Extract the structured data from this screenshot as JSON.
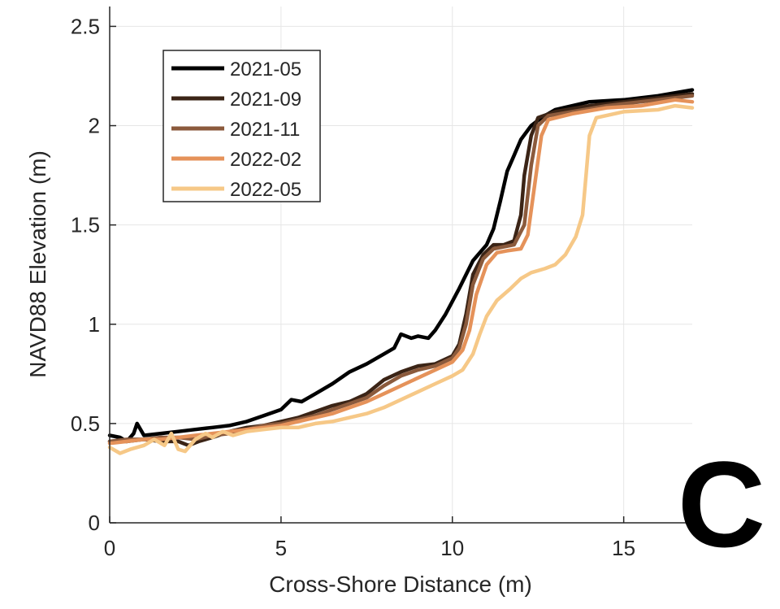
{
  "chart_data": {
    "type": "line",
    "title": "",
    "xlabel": "Cross-Shore Distance (m)",
    "ylabel": "NAVD88 Elevation (m)",
    "xlim": [
      0,
      17
    ],
    "ylim": [
      0,
      2.6
    ],
    "xticks": [
      0,
      5,
      10,
      15
    ],
    "xtick_labels": [
      "0",
      "5",
      "10",
      "15"
    ],
    "yticks": [
      0,
      0.5,
      1,
      1.5,
      2,
      2.5
    ],
    "ytick_labels": [
      "0",
      "0.5",
      "1",
      "1.5",
      "2",
      "2.5"
    ],
    "grid": true,
    "legend_position": "top-left",
    "panel_label": "C",
    "series": [
      {
        "name": "2021-05",
        "color": "#000000",
        "points": [
          [
            0,
            0.44
          ],
          [
            0.3,
            0.43
          ],
          [
            0.5,
            0.41
          ],
          [
            0.7,
            0.45
          ],
          [
            0.8,
            0.5
          ],
          [
            1.0,
            0.44
          ],
          [
            1.5,
            0.45
          ],
          [
            2,
            0.46
          ],
          [
            2.5,
            0.47
          ],
          [
            3,
            0.48
          ],
          [
            3.5,
            0.49
          ],
          [
            4,
            0.51
          ],
          [
            4.5,
            0.54
          ],
          [
            5,
            0.57
          ],
          [
            5.3,
            0.62
          ],
          [
            5.6,
            0.61
          ],
          [
            6,
            0.65
          ],
          [
            6.5,
            0.7
          ],
          [
            7,
            0.76
          ],
          [
            7.5,
            0.8
          ],
          [
            8,
            0.85
          ],
          [
            8.3,
            0.88
          ],
          [
            8.5,
            0.95
          ],
          [
            8.8,
            0.93
          ],
          [
            9,
            0.94
          ],
          [
            9.3,
            0.93
          ],
          [
            9.5,
            0.97
          ],
          [
            9.8,
            1.05
          ],
          [
            10.2,
            1.18
          ],
          [
            10.6,
            1.32
          ],
          [
            11,
            1.4
          ],
          [
            11.2,
            1.48
          ],
          [
            11.4,
            1.62
          ],
          [
            11.6,
            1.77
          ],
          [
            11.8,
            1.85
          ],
          [
            12,
            1.93
          ],
          [
            12.3,
            2.0
          ],
          [
            12.6,
            2.04
          ],
          [
            13,
            2.08
          ],
          [
            13.5,
            2.1
          ],
          [
            14,
            2.12
          ],
          [
            15,
            2.13
          ],
          [
            16,
            2.15
          ],
          [
            17,
            2.18
          ]
        ]
      },
      {
        "name": "2021-09",
        "color": "#3b2416",
        "points": [
          [
            0,
            0.41
          ],
          [
            0.5,
            0.41
          ],
          [
            1,
            0.42
          ],
          [
            1.5,
            0.41
          ],
          [
            2,
            0.41
          ],
          [
            2.3,
            0.39
          ],
          [
            2.6,
            0.41
          ],
          [
            3,
            0.43
          ],
          [
            3.5,
            0.46
          ],
          [
            4,
            0.48
          ],
          [
            4.5,
            0.49
          ],
          [
            5,
            0.51
          ],
          [
            5.5,
            0.53
          ],
          [
            6,
            0.56
          ],
          [
            6.5,
            0.59
          ],
          [
            7,
            0.61
          ],
          [
            7.5,
            0.65
          ],
          [
            8,
            0.72
          ],
          [
            8.5,
            0.76
          ],
          [
            9,
            0.79
          ],
          [
            9.5,
            0.8
          ],
          [
            10,
            0.84
          ],
          [
            10.2,
            0.9
          ],
          [
            10.4,
            1.05
          ],
          [
            10.6,
            1.25
          ],
          [
            10.9,
            1.35
          ],
          [
            11.2,
            1.4
          ],
          [
            11.5,
            1.4
          ],
          [
            11.8,
            1.42
          ],
          [
            12,
            1.55
          ],
          [
            12.1,
            1.75
          ],
          [
            12.3,
            1.95
          ],
          [
            12.5,
            2.04
          ],
          [
            13,
            2.07
          ],
          [
            14,
            2.1
          ],
          [
            15,
            2.12
          ],
          [
            16,
            2.14
          ],
          [
            17,
            2.16
          ]
        ]
      },
      {
        "name": "2021-11",
        "color": "#8b5a3c",
        "points": [
          [
            0,
            0.41
          ],
          [
            0.5,
            0.42
          ],
          [
            1,
            0.42
          ],
          [
            1.5,
            0.43
          ],
          [
            2,
            0.43
          ],
          [
            2.5,
            0.42
          ],
          [
            3,
            0.44
          ],
          [
            3.5,
            0.45
          ],
          [
            4,
            0.47
          ],
          [
            4.5,
            0.49
          ],
          [
            5,
            0.5
          ],
          [
            5.5,
            0.52
          ],
          [
            6,
            0.54
          ],
          [
            6.5,
            0.57
          ],
          [
            7,
            0.6
          ],
          [
            7.5,
            0.63
          ],
          [
            8,
            0.69
          ],
          [
            8.5,
            0.74
          ],
          [
            9,
            0.77
          ],
          [
            9.5,
            0.79
          ],
          [
            10,
            0.83
          ],
          [
            10.2,
            0.88
          ],
          [
            10.4,
            1.0
          ],
          [
            10.6,
            1.2
          ],
          [
            10.9,
            1.33
          ],
          [
            11.2,
            1.38
          ],
          [
            11.5,
            1.39
          ],
          [
            11.8,
            1.4
          ],
          [
            12.1,
            1.5
          ],
          [
            12.3,
            1.8
          ],
          [
            12.5,
            2.0
          ],
          [
            12.8,
            2.05
          ],
          [
            13.5,
            2.07
          ],
          [
            14.5,
            2.1
          ],
          [
            15.5,
            2.12
          ],
          [
            17,
            2.15
          ]
        ]
      },
      {
        "name": "2022-02",
        "color": "#e5925a",
        "points": [
          [
            0,
            0.4
          ],
          [
            0.5,
            0.41
          ],
          [
            1,
            0.42
          ],
          [
            1.5,
            0.42
          ],
          [
            2,
            0.43
          ],
          [
            2.5,
            0.44
          ],
          [
            3,
            0.45
          ],
          [
            3.5,
            0.46
          ],
          [
            4,
            0.47
          ],
          [
            4.5,
            0.48
          ],
          [
            5,
            0.49
          ],
          [
            5.5,
            0.51
          ],
          [
            6,
            0.53
          ],
          [
            6.5,
            0.55
          ],
          [
            7,
            0.58
          ],
          [
            7.5,
            0.61
          ],
          [
            8,
            0.65
          ],
          [
            8.5,
            0.69
          ],
          [
            9,
            0.73
          ],
          [
            9.5,
            0.77
          ],
          [
            10,
            0.81
          ],
          [
            10.3,
            0.87
          ],
          [
            10.5,
            0.97
          ],
          [
            10.7,
            1.15
          ],
          [
            11,
            1.3
          ],
          [
            11.3,
            1.36
          ],
          [
            11.6,
            1.37
          ],
          [
            12,
            1.38
          ],
          [
            12.2,
            1.45
          ],
          [
            12.4,
            1.7
          ],
          [
            12.6,
            1.95
          ],
          [
            12.8,
            2.03
          ],
          [
            13.5,
            2.06
          ],
          [
            14.5,
            2.09
          ],
          [
            15.5,
            2.1
          ],
          [
            16.5,
            2.13
          ],
          [
            17,
            2.12
          ]
        ]
      },
      {
        "name": "2022-05",
        "color": "#f6c887",
        "points": [
          [
            0,
            0.38
          ],
          [
            0.3,
            0.35
          ],
          [
            0.6,
            0.37
          ],
          [
            1,
            0.39
          ],
          [
            1.3,
            0.42
          ],
          [
            1.6,
            0.39
          ],
          [
            1.8,
            0.45
          ],
          [
            2,
            0.37
          ],
          [
            2.2,
            0.36
          ],
          [
            2.5,
            0.42
          ],
          [
            2.8,
            0.45
          ],
          [
            3,
            0.43
          ],
          [
            3.3,
            0.46
          ],
          [
            3.6,
            0.44
          ],
          [
            4,
            0.46
          ],
          [
            4.5,
            0.47
          ],
          [
            5,
            0.48
          ],
          [
            5.5,
            0.48
          ],
          [
            6,
            0.5
          ],
          [
            6.5,
            0.51
          ],
          [
            7,
            0.53
          ],
          [
            7.5,
            0.55
          ],
          [
            8,
            0.58
          ],
          [
            8.5,
            0.62
          ],
          [
            9,
            0.66
          ],
          [
            9.5,
            0.7
          ],
          [
            10,
            0.74
          ],
          [
            10.3,
            0.77
          ],
          [
            10.6,
            0.85
          ],
          [
            10.8,
            0.95
          ],
          [
            11,
            1.04
          ],
          [
            11.3,
            1.12
          ],
          [
            11.7,
            1.18
          ],
          [
            12,
            1.23
          ],
          [
            12.3,
            1.26
          ],
          [
            12.7,
            1.28
          ],
          [
            13,
            1.3
          ],
          [
            13.3,
            1.35
          ],
          [
            13.6,
            1.44
          ],
          [
            13.8,
            1.55
          ],
          [
            13.9,
            1.75
          ],
          [
            14,
            1.95
          ],
          [
            14.2,
            2.04
          ],
          [
            15,
            2.07
          ],
          [
            16,
            2.08
          ],
          [
            16.5,
            2.1
          ],
          [
            17,
            2.09
          ]
        ]
      }
    ]
  }
}
